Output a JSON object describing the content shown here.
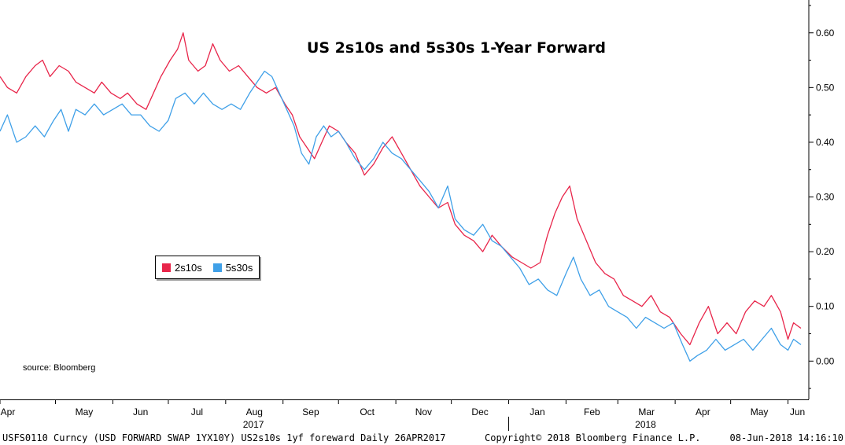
{
  "chart_data": {
    "type": "line",
    "title": "US 2s10s and 5s30s 1-Year Forward",
    "y_axis_side": "right",
    "ylim": [
      -0.07,
      0.66
    ],
    "y_ticks": [
      "0.60",
      "0.50",
      "0.40",
      "0.30",
      "0.20",
      "0.10",
      "0.00"
    ],
    "y_tick_values": [
      0.6,
      0.5,
      0.4,
      0.3,
      0.2,
      0.1,
      0.0
    ],
    "x_start": "2017-04-01",
    "x_end": "2018-06-08",
    "month_labels": [
      {
        "label": "Apr",
        "date": "2017-04-01"
      },
      {
        "label": "May",
        "date": "2017-05-01"
      },
      {
        "label": "Jun",
        "date": "2017-06-01"
      },
      {
        "label": "Jul",
        "date": "2017-07-01"
      },
      {
        "label": "Aug",
        "date": "2017-08-01"
      },
      {
        "label": "Sep",
        "date": "2017-09-01"
      },
      {
        "label": "Oct",
        "date": "2017-10-01"
      },
      {
        "label": "Nov",
        "date": "2017-11-01"
      },
      {
        "label": "Dec",
        "date": "2017-12-01"
      },
      {
        "label": "Jan",
        "date": "2018-01-01"
      },
      {
        "label": "Feb",
        "date": "2018-02-01"
      },
      {
        "label": "Mar",
        "date": "2018-03-01"
      },
      {
        "label": "Apr",
        "date": "2018-04-01"
      },
      {
        "label": "May",
        "date": "2018-05-01"
      },
      {
        "label": "Jun",
        "date": "2018-06-01"
      }
    ],
    "year_labels": [
      {
        "label": "2017",
        "date": "2017-08-16"
      },
      {
        "label": "2018",
        "date": "2018-03-16"
      }
    ],
    "legend_position": "left-middle",
    "series": [
      {
        "name": "2s10s",
        "color": "#e8254a",
        "points": [
          [
            "2017-04-01",
            0.52
          ],
          [
            "2017-04-05",
            0.5
          ],
          [
            "2017-04-10",
            0.49
          ],
          [
            "2017-04-15",
            0.52
          ],
          [
            "2017-04-20",
            0.54
          ],
          [
            "2017-04-24",
            0.55
          ],
          [
            "2017-04-28",
            0.52
          ],
          [
            "2017-05-03",
            0.54
          ],
          [
            "2017-05-08",
            0.53
          ],
          [
            "2017-05-12",
            0.51
          ],
          [
            "2017-05-17",
            0.5
          ],
          [
            "2017-05-22",
            0.49
          ],
          [
            "2017-05-26",
            0.51
          ],
          [
            "2017-05-31",
            0.49
          ],
          [
            "2017-06-05",
            0.48
          ],
          [
            "2017-06-09",
            0.49
          ],
          [
            "2017-06-14",
            0.47
          ],
          [
            "2017-06-19",
            0.46
          ],
          [
            "2017-06-23",
            0.49
          ],
          [
            "2017-06-27",
            0.52
          ],
          [
            "2017-07-02",
            0.55
          ],
          [
            "2017-07-06",
            0.57
          ],
          [
            "2017-07-09",
            0.6
          ],
          [
            "2017-07-12",
            0.55
          ],
          [
            "2017-07-17",
            0.53
          ],
          [
            "2017-07-21",
            0.54
          ],
          [
            "2017-07-25",
            0.58
          ],
          [
            "2017-07-29",
            0.55
          ],
          [
            "2017-08-03",
            0.53
          ],
          [
            "2017-08-08",
            0.54
          ],
          [
            "2017-08-13",
            0.52
          ],
          [
            "2017-08-18",
            0.5
          ],
          [
            "2017-08-23",
            0.49
          ],
          [
            "2017-08-28",
            0.5
          ],
          [
            "2017-09-02",
            0.47
          ],
          [
            "2017-09-06",
            0.45
          ],
          [
            "2017-09-10",
            0.41
          ],
          [
            "2017-09-14",
            0.39
          ],
          [
            "2017-09-18",
            0.37
          ],
          [
            "2017-09-22",
            0.4
          ],
          [
            "2017-09-26",
            0.43
          ],
          [
            "2017-10-01",
            0.42
          ],
          [
            "2017-10-05",
            0.4
          ],
          [
            "2017-10-10",
            0.38
          ],
          [
            "2017-10-15",
            0.34
          ],
          [
            "2017-10-20",
            0.36
          ],
          [
            "2017-10-25",
            0.39
          ],
          [
            "2017-10-30",
            0.41
          ],
          [
            "2017-11-04",
            0.38
          ],
          [
            "2017-11-09",
            0.35
          ],
          [
            "2017-11-14",
            0.32
          ],
          [
            "2017-11-19",
            0.3
          ],
          [
            "2017-11-24",
            0.28
          ],
          [
            "2017-11-29",
            0.29
          ],
          [
            "2017-12-03",
            0.25
          ],
          [
            "2017-12-08",
            0.23
          ],
          [
            "2017-12-13",
            0.22
          ],
          [
            "2017-12-18",
            0.2
          ],
          [
            "2017-12-23",
            0.23
          ],
          [
            "2017-12-28",
            0.21
          ],
          [
            "2018-01-03",
            0.19
          ],
          [
            "2018-01-08",
            0.18
          ],
          [
            "2018-01-13",
            0.17
          ],
          [
            "2018-01-18",
            0.18
          ],
          [
            "2018-01-22",
            0.23
          ],
          [
            "2018-01-26",
            0.27
          ],
          [
            "2018-01-30",
            0.3
          ],
          [
            "2018-02-03",
            0.32
          ],
          [
            "2018-02-07",
            0.26
          ],
          [
            "2018-02-12",
            0.22
          ],
          [
            "2018-02-17",
            0.18
          ],
          [
            "2018-02-22",
            0.16
          ],
          [
            "2018-02-27",
            0.15
          ],
          [
            "2018-03-04",
            0.12
          ],
          [
            "2018-03-09",
            0.11
          ],
          [
            "2018-03-14",
            0.1
          ],
          [
            "2018-03-19",
            0.12
          ],
          [
            "2018-03-24",
            0.09
          ],
          [
            "2018-03-29",
            0.08
          ],
          [
            "2018-04-04",
            0.05
          ],
          [
            "2018-04-09",
            0.03
          ],
          [
            "2018-04-14",
            0.07
          ],
          [
            "2018-04-19",
            0.1
          ],
          [
            "2018-04-24",
            0.05
          ],
          [
            "2018-04-29",
            0.07
          ],
          [
            "2018-05-04",
            0.05
          ],
          [
            "2018-05-09",
            0.09
          ],
          [
            "2018-05-14",
            0.11
          ],
          [
            "2018-05-19",
            0.1
          ],
          [
            "2018-05-23",
            0.12
          ],
          [
            "2018-05-28",
            0.09
          ],
          [
            "2018-06-01",
            0.04
          ],
          [
            "2018-06-04",
            0.07
          ],
          [
            "2018-06-08",
            0.06
          ]
        ]
      },
      {
        "name": "5s30s",
        "color": "#3fa0e8",
        "points": [
          [
            "2017-04-01",
            0.42
          ],
          [
            "2017-04-05",
            0.45
          ],
          [
            "2017-04-10",
            0.4
          ],
          [
            "2017-04-15",
            0.41
          ],
          [
            "2017-04-20",
            0.43
          ],
          [
            "2017-04-25",
            0.41
          ],
          [
            "2017-04-30",
            0.44
          ],
          [
            "2017-05-04",
            0.46
          ],
          [
            "2017-05-08",
            0.42
          ],
          [
            "2017-05-12",
            0.46
          ],
          [
            "2017-05-17",
            0.45
          ],
          [
            "2017-05-22",
            0.47
          ],
          [
            "2017-05-27",
            0.45
          ],
          [
            "2017-06-01",
            0.46
          ],
          [
            "2017-06-06",
            0.47
          ],
          [
            "2017-06-11",
            0.45
          ],
          [
            "2017-06-16",
            0.45
          ],
          [
            "2017-06-21",
            0.43
          ],
          [
            "2017-06-26",
            0.42
          ],
          [
            "2017-07-01",
            0.44
          ],
          [
            "2017-07-05",
            0.48
          ],
          [
            "2017-07-10",
            0.49
          ],
          [
            "2017-07-15",
            0.47
          ],
          [
            "2017-07-20",
            0.49
          ],
          [
            "2017-07-25",
            0.47
          ],
          [
            "2017-07-30",
            0.46
          ],
          [
            "2017-08-04",
            0.47
          ],
          [
            "2017-08-09",
            0.46
          ],
          [
            "2017-08-14",
            0.49
          ],
          [
            "2017-08-18",
            0.51
          ],
          [
            "2017-08-22",
            0.53
          ],
          [
            "2017-08-26",
            0.52
          ],
          [
            "2017-08-30",
            0.49
          ],
          [
            "2017-09-03",
            0.46
          ],
          [
            "2017-09-07",
            0.43
          ],
          [
            "2017-09-11",
            0.38
          ],
          [
            "2017-09-15",
            0.36
          ],
          [
            "2017-09-19",
            0.41
          ],
          [
            "2017-09-23",
            0.43
          ],
          [
            "2017-09-27",
            0.41
          ],
          [
            "2017-10-01",
            0.42
          ],
          [
            "2017-10-05",
            0.4
          ],
          [
            "2017-10-10",
            0.37
          ],
          [
            "2017-10-15",
            0.35
          ],
          [
            "2017-10-20",
            0.37
          ],
          [
            "2017-10-25",
            0.4
          ],
          [
            "2017-10-30",
            0.38
          ],
          [
            "2017-11-04",
            0.37
          ],
          [
            "2017-11-09",
            0.35
          ],
          [
            "2017-11-14",
            0.33
          ],
          [
            "2017-11-19",
            0.31
          ],
          [
            "2017-11-24",
            0.28
          ],
          [
            "2017-11-29",
            0.32
          ],
          [
            "2017-12-03",
            0.26
          ],
          [
            "2017-12-08",
            0.24
          ],
          [
            "2017-12-13",
            0.23
          ],
          [
            "2017-12-18",
            0.25
          ],
          [
            "2017-12-23",
            0.22
          ],
          [
            "2017-12-28",
            0.21
          ],
          [
            "2018-01-02",
            0.19
          ],
          [
            "2018-01-07",
            0.17
          ],
          [
            "2018-01-12",
            0.14
          ],
          [
            "2018-01-17",
            0.15
          ],
          [
            "2018-01-22",
            0.13
          ],
          [
            "2018-01-27",
            0.12
          ],
          [
            "2018-02-01",
            0.16
          ],
          [
            "2018-02-05",
            0.19
          ],
          [
            "2018-02-09",
            0.15
          ],
          [
            "2018-02-14",
            0.12
          ],
          [
            "2018-02-19",
            0.13
          ],
          [
            "2018-02-24",
            0.1
          ],
          [
            "2018-03-01",
            0.09
          ],
          [
            "2018-03-06",
            0.08
          ],
          [
            "2018-03-11",
            0.06
          ],
          [
            "2018-03-16",
            0.08
          ],
          [
            "2018-03-21",
            0.07
          ],
          [
            "2018-03-26",
            0.06
          ],
          [
            "2018-03-31",
            0.07
          ],
          [
            "2018-04-05",
            0.03
          ],
          [
            "2018-04-09",
            0.0
          ],
          [
            "2018-04-13",
            0.01
          ],
          [
            "2018-04-18",
            0.02
          ],
          [
            "2018-04-23",
            0.04
          ],
          [
            "2018-04-28",
            0.02
          ],
          [
            "2018-05-03",
            0.03
          ],
          [
            "2018-05-08",
            0.04
          ],
          [
            "2018-05-13",
            0.02
          ],
          [
            "2018-05-18",
            0.04
          ],
          [
            "2018-05-23",
            0.06
          ],
          [
            "2018-05-28",
            0.03
          ],
          [
            "2018-06-01",
            0.02
          ],
          [
            "2018-06-04",
            0.04
          ],
          [
            "2018-06-08",
            0.03
          ]
        ]
      }
    ]
  },
  "annotations": {
    "source": "source: Bloomberg"
  },
  "footer": {
    "left": "USFS0110 Curncy (USD FORWARD SWAP  1YX10Y) US2s10s 1yf foreward  Daily 26APR2017",
    "middle": "Copyright© 2018 Bloomberg Finance L.P.",
    "right": "08-Jun-2018 14:16:10"
  }
}
